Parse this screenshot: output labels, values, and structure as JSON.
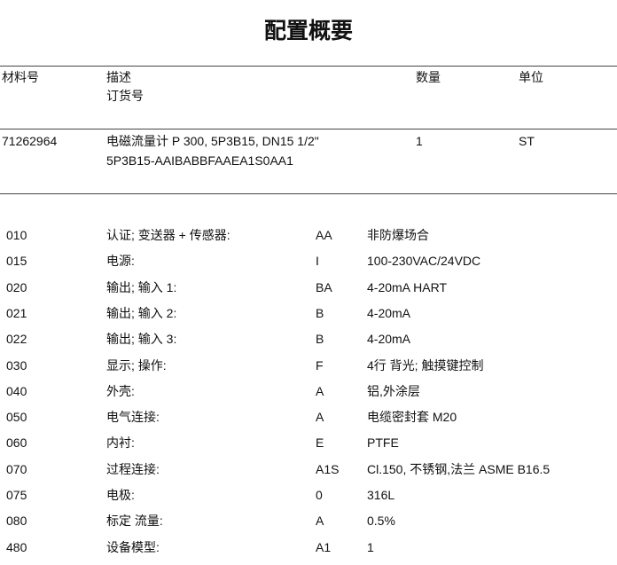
{
  "title": "配置概要",
  "header": {
    "material_no": "材料号",
    "description": "描述",
    "order_code": "订货号",
    "quantity": "数量",
    "unit": "单位"
  },
  "item": {
    "material_no": "71262964",
    "description": "电磁流量计 P 300, 5P3B15, DN15 1/2\"",
    "order_code": "5P3B15-AAIBABBFAAEA1S0AA1",
    "quantity": "1",
    "unit": "ST"
  },
  "config": [
    {
      "pos": "010",
      "feature": "认证; 变送器 + 传感器:",
      "code": "AA",
      "value": "非防爆场合"
    },
    {
      "pos": "015",
      "feature": "电源:",
      "code": "I",
      "value": "100-230VAC/24VDC"
    },
    {
      "pos": "020",
      "feature": "输出; 输入 1:",
      "code": "BA",
      "value": "4-20mA HART"
    },
    {
      "pos": "021",
      "feature": "输出; 输入 2:",
      "code": "B",
      "value": "4-20mA"
    },
    {
      "pos": "022",
      "feature": "输出; 输入 3:",
      "code": "B",
      "value": "4-20mA"
    },
    {
      "pos": "030",
      "feature": "显示; 操作:",
      "code": "F",
      "value": "4行 背光; 触摸键控制"
    },
    {
      "pos": "040",
      "feature": "外壳:",
      "code": "A",
      "value": "铝,外涂层"
    },
    {
      "pos": "050",
      "feature": "电气连接:",
      "code": "A",
      "value": "电缆密封套 M20"
    },
    {
      "pos": "060",
      "feature": "内衬:",
      "code": "E",
      "value": "PTFE"
    },
    {
      "pos": "070",
      "feature": "过程连接:",
      "code": "A1S",
      "value": "Cl.150, 不锈钢,法兰 ASME B16.5"
    },
    {
      "pos": "075",
      "feature": "电极:",
      "code": "0",
      "value": "316L"
    },
    {
      "pos": "080",
      "feature": "标定 流量:",
      "code": "A",
      "value": "0.5%"
    },
    {
      "pos": "480",
      "feature": "设备模型:",
      "code": "A1",
      "value": "1"
    }
  ]
}
